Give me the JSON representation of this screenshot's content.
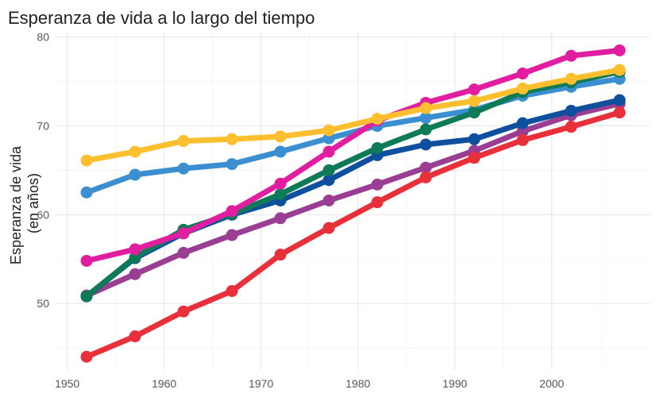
{
  "chart_data": {
    "type": "line",
    "title": "Esperanza de vida a lo largo del tiempo",
    "xlabel": "",
    "ylabel_lines": [
      "Esperanza de vida",
      "(en años)"
    ],
    "x": [
      1952,
      1957,
      1962,
      1967,
      1972,
      1977,
      1982,
      1987,
      1992,
      1997,
      2002,
      2007
    ],
    "xlim": [
      1948.8,
      2010.1
    ],
    "ylim": [
      42.5,
      80.6
    ],
    "xticks": [
      1950,
      1960,
      1970,
      1980,
      1990,
      2000
    ],
    "yticks": [
      50,
      60,
      70,
      80
    ],
    "grid": true,
    "legend": "none",
    "series": [
      {
        "color": "#3B8FD0",
        "values": [
          62.5,
          64.5,
          65.2,
          65.7,
          67.1,
          68.6,
          70.0,
          70.9,
          71.8,
          73.4,
          74.4,
          75.3
        ]
      },
      {
        "color": "#9A3E94",
        "values": [
          50.9,
          53.3,
          55.7,
          57.7,
          59.6,
          61.6,
          63.4,
          65.3,
          67.2,
          69.4,
          71.2,
          72.5
        ]
      },
      {
        "color": "#0E4F9E",
        "values": [
          50.8,
          55.1,
          57.9,
          60.0,
          61.6,
          63.9,
          66.7,
          67.9,
          68.5,
          70.3,
          71.7,
          72.9
        ]
      },
      {
        "color": "#0E7A58",
        "values": [
          50.8,
          55.2,
          58.3,
          60.1,
          62.3,
          65.0,
          67.5,
          69.6,
          71.5,
          73.8,
          74.9,
          76.1
        ]
      },
      {
        "color": "#E21EA0",
        "values": [
          54.8,
          56.1,
          57.9,
          60.4,
          63.5,
          67.1,
          70.6,
          72.6,
          74.1,
          75.9,
          77.9,
          78.5
        ]
      },
      {
        "color": "#FDBF2D",
        "values": [
          66.1,
          67.1,
          68.3,
          68.5,
          68.8,
          69.5,
          70.8,
          72.0,
          72.8,
          74.2,
          75.3,
          76.3
        ]
      },
      {
        "color": "#E8303B",
        "values": [
          44.0,
          46.3,
          49.1,
          51.4,
          55.5,
          58.5,
          61.4,
          64.2,
          66.4,
          68.4,
          69.9,
          71.5
        ]
      }
    ]
  }
}
